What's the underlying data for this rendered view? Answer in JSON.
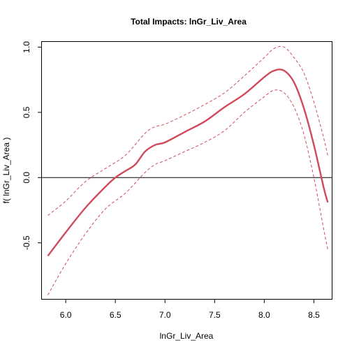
{
  "chart_data": {
    "type": "line",
    "title": "Total Impacts:  lnGr_Liv_Area",
    "xlabel": "lnGr_Liv_Area",
    "ylabel": "f( lnGr_Liv_Area )",
    "xlim": [
      5.76,
      8.68
    ],
    "ylim": [
      -0.93,
      1.04
    ],
    "x_ticks": [
      6.0,
      6.5,
      7.0,
      7.5,
      8.0,
      8.5
    ],
    "x_tick_labels": [
      "6.0",
      "6.5",
      "7.0",
      "7.5",
      "8.0",
      "8.5"
    ],
    "y_ticks": [
      -0.5,
      0.0,
      0.5,
      1.0
    ],
    "y_tick_labels": [
      "-0.5",
      "0.0",
      "0.5",
      "1.0"
    ],
    "reference_line_y": 0,
    "grid": false,
    "series": [
      {
        "role": "fit",
        "style": "solid",
        "color": "#d04a5c",
        "x": [
          5.82,
          6.0,
          6.2,
          6.4,
          6.5,
          6.6,
          6.7,
          6.8,
          6.9,
          7.0,
          7.2,
          7.4,
          7.6,
          7.8,
          8.0,
          8.1,
          8.2,
          8.3,
          8.4,
          8.5,
          8.6,
          8.64
        ],
        "y": [
          -0.6,
          -0.42,
          -0.23,
          -0.07,
          0.0,
          0.05,
          0.1,
          0.2,
          0.25,
          0.27,
          0.35,
          0.43,
          0.54,
          0.64,
          0.77,
          0.82,
          0.82,
          0.73,
          0.53,
          0.25,
          -0.08,
          -0.19
        ]
      },
      {
        "role": "upper-band",
        "style": "dashed",
        "color": "#d04a5c",
        "x": [
          5.82,
          6.0,
          6.2,
          6.4,
          6.6,
          6.8,
          6.9,
          7.0,
          7.2,
          7.4,
          7.6,
          7.8,
          8.0,
          8.1,
          8.2,
          8.3,
          8.4,
          8.5,
          8.6,
          8.64
        ],
        "y": [
          -0.29,
          -0.18,
          -0.03,
          0.07,
          0.17,
          0.34,
          0.39,
          0.41,
          0.48,
          0.56,
          0.65,
          0.78,
          0.92,
          0.99,
          1.0,
          0.92,
          0.8,
          0.58,
          0.3,
          0.17
        ]
      },
      {
        "role": "lower-band",
        "style": "dashed",
        "color": "#d04a5c",
        "x": [
          5.82,
          6.0,
          6.2,
          6.4,
          6.6,
          6.8,
          6.9,
          7.0,
          7.2,
          7.4,
          7.6,
          7.8,
          8.0,
          8.1,
          8.2,
          8.3,
          8.4,
          8.5,
          8.6,
          8.64
        ],
        "y": [
          -0.9,
          -0.66,
          -0.43,
          -0.24,
          -0.12,
          0.04,
          0.1,
          0.13,
          0.2,
          0.27,
          0.36,
          0.5,
          0.62,
          0.67,
          0.65,
          0.54,
          0.33,
          0.0,
          -0.4,
          -0.55
        ]
      }
    ]
  }
}
